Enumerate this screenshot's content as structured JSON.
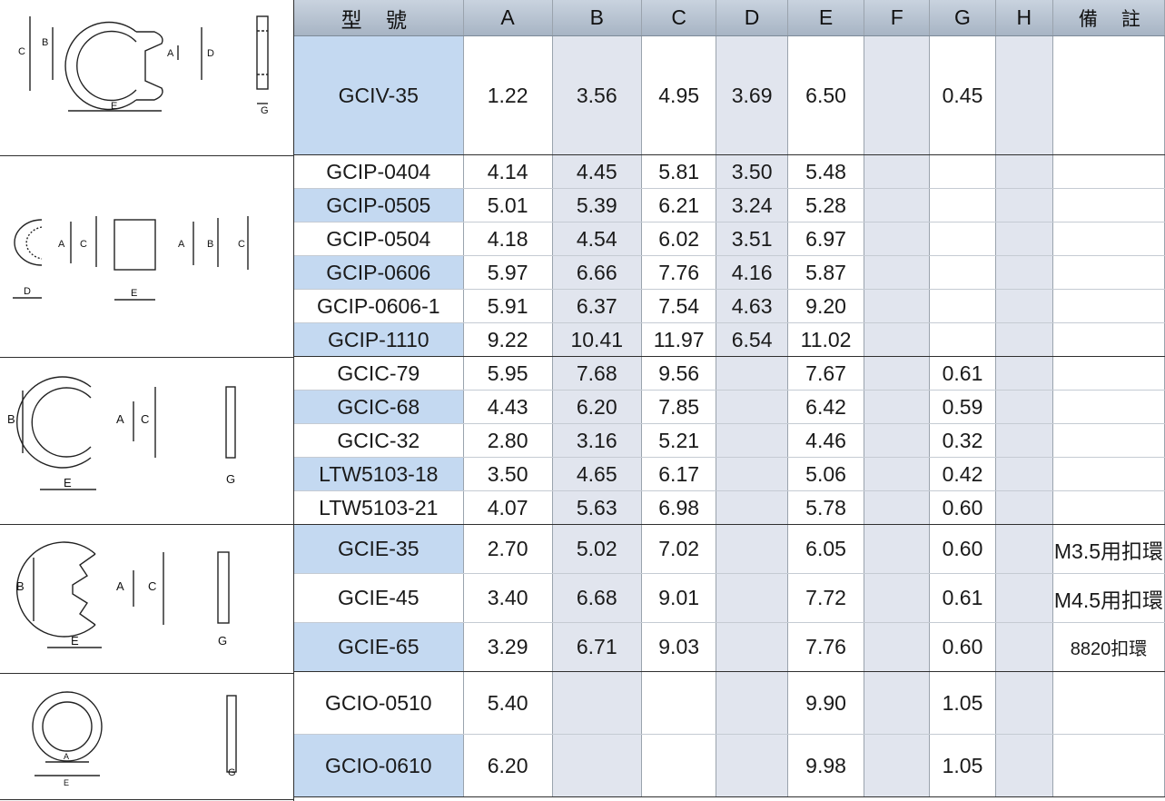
{
  "headers": {
    "model": "型 號",
    "A": "A",
    "B": "B",
    "C": "C",
    "D": "D",
    "E": "E",
    "F": "F",
    "G": "G",
    "H": "H",
    "remark": "備註"
  },
  "diagram_labels": {
    "A": "A",
    "B": "B",
    "C": "C",
    "D": "D",
    "E": "E",
    "G": "G"
  },
  "groups": [
    {
      "diagram": "clip-v-ring",
      "rows": [
        {
          "model": "GCIV-35",
          "A": "1.22",
          "B": "3.56",
          "C": "4.95",
          "D": "3.69",
          "E": "6.50",
          "F": "",
          "G": "0.45",
          "H": "",
          "remark": "",
          "highlight": true
        }
      ]
    },
    {
      "diagram": "clip-p-ring",
      "rows": [
        {
          "model": "GCIP-0404",
          "A": "4.14",
          "B": "4.45",
          "C": "5.81",
          "D": "3.50",
          "E": "5.48",
          "F": "",
          "G": "",
          "H": "",
          "remark": "",
          "highlight": false
        },
        {
          "model": "GCIP-0505",
          "A": "5.01",
          "B": "5.39",
          "C": "6.21",
          "D": "3.24",
          "E": "5.28",
          "F": "",
          "G": "",
          "H": "",
          "remark": "",
          "highlight": true
        },
        {
          "model": "GCIP-0504",
          "A": "4.18",
          "B": "4.54",
          "C": "6.02",
          "D": "3.51",
          "E": "6.97",
          "F": "",
          "G": "",
          "H": "",
          "remark": "",
          "highlight": false
        },
        {
          "model": "GCIP-0606",
          "A": "5.97",
          "B": "6.66",
          "C": "7.76",
          "D": "4.16",
          "E": "5.87",
          "F": "",
          "G": "",
          "H": "",
          "remark": "",
          "highlight": true
        },
        {
          "model": "GCIP-0606-1",
          "A": "5.91",
          "B": "6.37",
          "C": "7.54",
          "D": "4.63",
          "E": "9.20",
          "F": "",
          "G": "",
          "H": "",
          "remark": "",
          "highlight": false
        },
        {
          "model": "GCIP-1110",
          "A": "9.22",
          "B": "10.41",
          "C": "11.97",
          "D": "6.54",
          "E": "11.02",
          "F": "",
          "G": "",
          "H": "",
          "remark": "",
          "highlight": true
        }
      ]
    },
    {
      "diagram": "clip-c-ring",
      "rows": [
        {
          "model": "GCIC-79",
          "A": "5.95",
          "B": "7.68",
          "C": "9.56",
          "D": "",
          "E": "7.67",
          "F": "",
          "G": "0.61",
          "H": "",
          "remark": "",
          "highlight": false
        },
        {
          "model": "GCIC-68",
          "A": "4.43",
          "B": "6.20",
          "C": "7.85",
          "D": "",
          "E": "6.42",
          "F": "",
          "G": "0.59",
          "H": "",
          "remark": "",
          "highlight": true
        },
        {
          "model": "GCIC-32",
          "A": "2.80",
          "B": "3.16",
          "C": "5.21",
          "D": "",
          "E": "4.46",
          "F": "",
          "G": "0.32",
          "H": "",
          "remark": "",
          "highlight": false
        },
        {
          "model": "LTW5103-18",
          "A": "3.50",
          "B": "4.65",
          "C": "6.17",
          "D": "",
          "E": "5.06",
          "F": "",
          "G": "0.42",
          "H": "",
          "remark": "",
          "highlight": true
        },
        {
          "model": "LTW5103-21",
          "A": "4.07",
          "B": "5.63",
          "C": "6.98",
          "D": "",
          "E": "5.78",
          "F": "",
          "G": "0.60",
          "H": "",
          "remark": "",
          "highlight": false
        }
      ]
    },
    {
      "diagram": "clip-e-ring",
      "rows": [
        {
          "model": "GCIE-35",
          "A": "2.70",
          "B": "5.02",
          "C": "7.02",
          "D": "",
          "E": "6.05",
          "F": "",
          "G": "0.60",
          "H": "",
          "remark": "M3.5用扣環",
          "highlight": true
        },
        {
          "model": "GCIE-45",
          "A": "3.40",
          "B": "6.68",
          "C": "9.01",
          "D": "",
          "E": "7.72",
          "F": "",
          "G": "0.61",
          "H": "",
          "remark": "M4.5用扣環",
          "highlight": false
        },
        {
          "model": "GCIE-65",
          "A": "3.29",
          "B": "6.71",
          "C": "9.03",
          "D": "",
          "E": "7.76",
          "F": "",
          "G": "0.60",
          "H": "",
          "remark": "8820扣環",
          "highlight": true
        }
      ]
    },
    {
      "diagram": "clip-o-ring",
      "rows": [
        {
          "model": "GCIO-0510",
          "A": "5.40",
          "B": "",
          "C": "",
          "D": "",
          "E": "9.90",
          "F": "",
          "G": "1.05",
          "H": "",
          "remark": "",
          "highlight": false
        },
        {
          "model": "GCIO-0610",
          "A": "6.20",
          "B": "",
          "C": "",
          "D": "",
          "E": "9.98",
          "F": "",
          "G": "1.05",
          "H": "",
          "remark": "",
          "highlight": true
        }
      ]
    }
  ]
}
